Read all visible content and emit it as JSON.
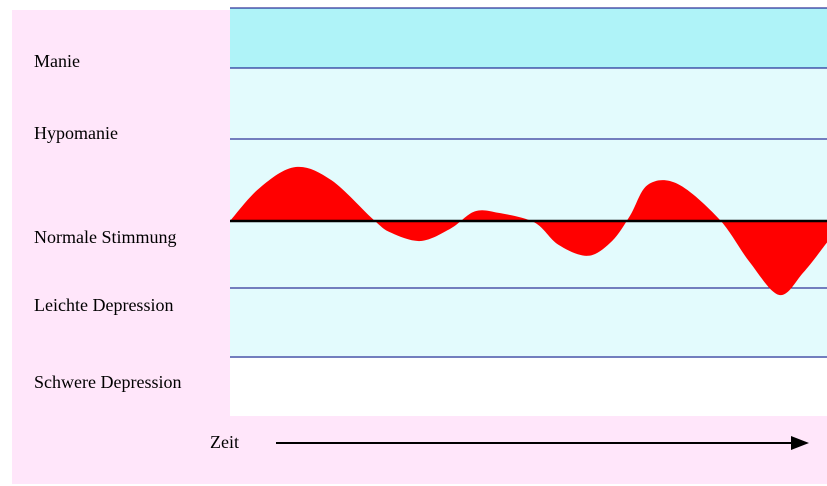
{
  "levels": {
    "mania": "Manie",
    "hypomania": "Hypomanie",
    "normal": "Normale Stimmung",
    "mild_depression": "Leichte Depression",
    "severe_depression": "Schwere Depression"
  },
  "axis": {
    "x_label": "Zeit"
  },
  "colors": {
    "panel_background": "#ffe6fa",
    "band_mania": "#aff3f8",
    "band_light": "#e3fbfd",
    "mood_fill": "#ff0000",
    "line": "#000080"
  },
  "mood_curve": {
    "description_of_levels": "0 = normal, positive = elevated, negative = depressed; units relative to band height",
    "points": [
      [
        0.0,
        0.0
      ],
      [
        0.05,
        0.45
      ],
      [
        0.11,
        0.73
      ],
      [
        0.17,
        0.55
      ],
      [
        0.24,
        0.02
      ],
      [
        0.27,
        -0.16
      ],
      [
        0.32,
        -0.27
      ],
      [
        0.37,
        -0.1
      ],
      [
        0.41,
        0.13
      ],
      [
        0.45,
        0.11
      ],
      [
        0.51,
        -0.02
      ],
      [
        0.55,
        -0.32
      ],
      [
        0.6,
        -0.47
      ],
      [
        0.64,
        -0.27
      ],
      [
        0.67,
        0.07
      ],
      [
        0.7,
        0.49
      ],
      [
        0.75,
        0.5
      ],
      [
        0.82,
        0.02
      ],
      [
        0.87,
        -0.55
      ],
      [
        0.92,
        -1.0
      ],
      [
        0.96,
        -0.7
      ],
      [
        1.0,
        -0.29
      ]
    ]
  }
}
